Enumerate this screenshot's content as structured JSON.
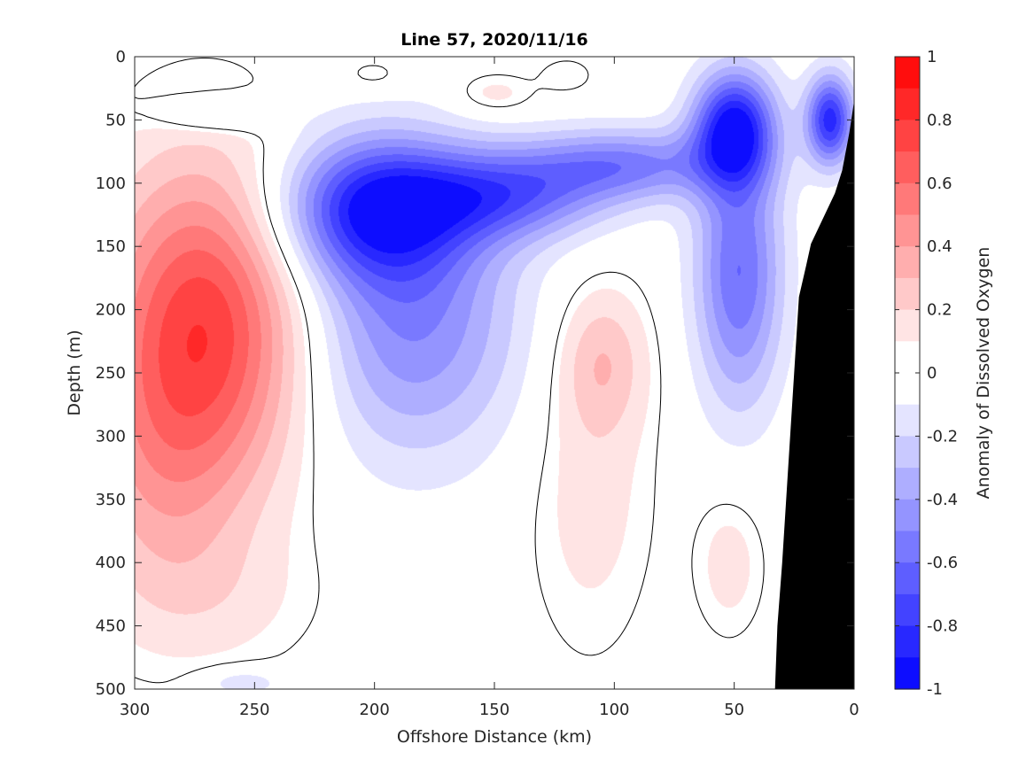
{
  "chart_data": {
    "type": "heatmap",
    "title": "Line 57, 2020/11/16",
    "xlabel": "Offshore Distance (km)",
    "ylabel": "Depth (m)",
    "colorbar_label": "Anomaly of Dissolved Oxygen",
    "xlim": [
      300,
      0
    ],
    "ylim": [
      0,
      500
    ],
    "x_reversed": true,
    "y_reversed": true,
    "x_ticks": [
      "300",
      "250",
      "200",
      "150",
      "100",
      "50",
      "0"
    ],
    "x_tick_values": [
      300,
      250,
      200,
      150,
      100,
      50,
      0
    ],
    "y_ticks": [
      "0",
      "50",
      "100",
      "150",
      "200",
      "250",
      "300",
      "350",
      "400",
      "450",
      "500"
    ],
    "y_tick_values": [
      0,
      50,
      100,
      150,
      200,
      250,
      300,
      350,
      400,
      450,
      500
    ],
    "colorbar_ticks": [
      "1",
      "0.8",
      "0.6",
      "0.4",
      "0.2",
      "0",
      "-0.2",
      "-0.4",
      "-0.6",
      "-0.8",
      "-1"
    ],
    "colorbar_tick_values": [
      1,
      0.8,
      0.6,
      0.4,
      0.2,
      0,
      -0.2,
      -0.4,
      -0.6,
      -0.8,
      -1
    ],
    "color_limits": [
      -1,
      1
    ],
    "color_levels": 20,
    "colormap": {
      "negative": "#0000ff",
      "zero": "#ffffff",
      "positive": "#ff0000"
    },
    "zero_contour_color": "#000000",
    "bathymetry_color": "#000000",
    "bathymetry_profile": [
      {
        "x": 33,
        "depth": 500
      },
      {
        "x": 32,
        "depth": 450
      },
      {
        "x": 30,
        "depth": 400
      },
      {
        "x": 28,
        "depth": 340
      },
      {
        "x": 26,
        "depth": 280
      },
      {
        "x": 25,
        "depth": 250
      },
      {
        "x": 23,
        "depth": 190
      },
      {
        "x": 20,
        "depth": 165
      },
      {
        "x": 18,
        "depth": 148
      },
      {
        "x": 13,
        "depth": 128
      },
      {
        "x": 8,
        "depth": 108
      },
      {
        "x": 5,
        "depth": 90
      },
      {
        "x": 2,
        "depth": 60
      },
      {
        "x": 0,
        "depth": 35
      }
    ],
    "anomaly_features": [
      {
        "x": 270,
        "depth": 210,
        "value": 0.75,
        "sx": 30,
        "sy": 90
      },
      {
        "x": 290,
        "depth": 330,
        "value": 0.25,
        "sx": 25,
        "sy": 80
      },
      {
        "x": 265,
        "depth": 430,
        "value": 0.1,
        "sx": 30,
        "sy": 40
      },
      {
        "x": 200,
        "depth": 120,
        "value": -0.8,
        "sx": 28,
        "sy": 40
      },
      {
        "x": 185,
        "depth": 210,
        "value": -0.5,
        "sx": 32,
        "sy": 75
      },
      {
        "x": 145,
        "depth": 110,
        "value": -0.55,
        "sx": 30,
        "sy": 25
      },
      {
        "x": 95,
        "depth": 85,
        "value": -0.5,
        "sx": 30,
        "sy": 20
      },
      {
        "x": 50,
        "depth": 55,
        "value": -0.85,
        "sx": 12,
        "sy": 30
      },
      {
        "x": 48,
        "depth": 170,
        "value": -0.6,
        "sx": 13,
        "sy": 75
      },
      {
        "x": 10,
        "depth": 50,
        "value": -0.85,
        "sx": 7,
        "sy": 25
      },
      {
        "x": 265,
        "depth": 45,
        "value": -0.22,
        "sx": 18,
        "sy": 10
      },
      {
        "x": 105,
        "depth": 240,
        "value": 0.25,
        "sx": 13,
        "sy": 40
      },
      {
        "x": 110,
        "depth": 340,
        "value": 0.15,
        "sx": 18,
        "sy": 90
      },
      {
        "x": 52,
        "depth": 400,
        "value": 0.15,
        "sx": 10,
        "sy": 40
      },
      {
        "x": 150,
        "depth": 30,
        "value": 0.15,
        "sx": 12,
        "sy": 12
      },
      {
        "x": 200,
        "depth": 15,
        "value": 0.1,
        "sx": 10,
        "sy": 10
      },
      {
        "x": 120,
        "depth": 15,
        "value": 0.1,
        "sx": 8,
        "sy": 10
      },
      {
        "x": 255,
        "depth": 495,
        "value": -0.2,
        "sx": 12,
        "sy": 8
      }
    ]
  }
}
